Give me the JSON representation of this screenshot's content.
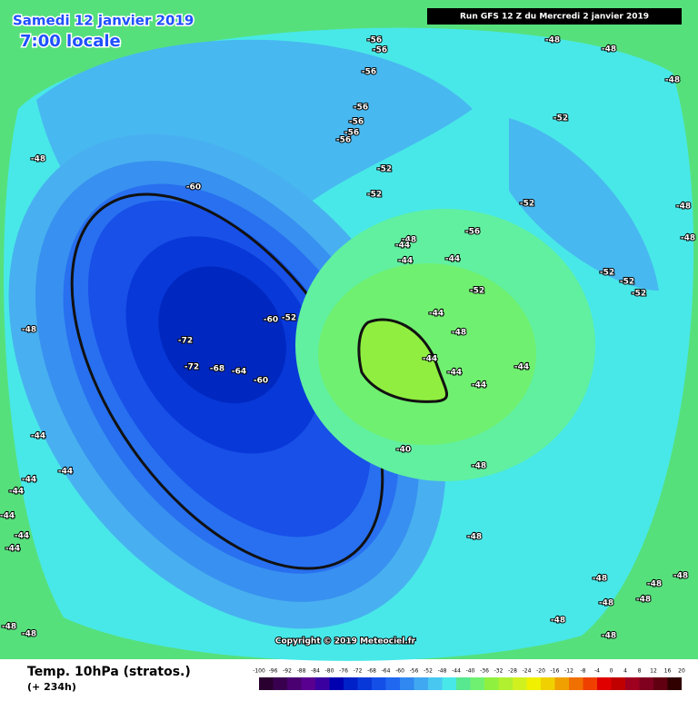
{
  "header": {
    "date": "Samedi 12 janvier 2019",
    "time": "7:00 locale",
    "run": "Run GFS 12 Z du Mercredi 2 janvier 2019"
  },
  "footer": {
    "parameter": "Temp. 10hPa (stratos.)",
    "lead": "(+ 234h)",
    "copyright": "Copyright © 2019 Meteociel.fr"
  },
  "colorbar": {
    "ticks": [
      -100,
      -96,
      -92,
      -88,
      -84,
      -80,
      -76,
      -72,
      -68,
      -64,
      -60,
      -56,
      -52,
      -48,
      -44,
      -40,
      -36,
      -32,
      -28,
      -24,
      -20,
      -16,
      -12,
      -8,
      -4,
      0,
      4,
      8,
      12,
      16,
      20
    ],
    "colors": [
      "#2a0030",
      "#3a0050",
      "#4a0070",
      "#5a0090",
      "#3a00a0",
      "#0000b0",
      "#0020c8",
      "#0838d8",
      "#1450e8",
      "#2068f0",
      "#3088f0",
      "#40a8f0",
      "#48c8f0",
      "#48e8e8",
      "#58e890",
      "#70f070",
      "#90f040",
      "#b0f030",
      "#d0f020",
      "#f0f000",
      "#f0d000",
      "#f0a000",
      "#f07000",
      "#f04000",
      "#e00000",
      "#c00000",
      "#a00020",
      "#800020",
      "#600010",
      "#300000"
    ]
  },
  "contour_labels": [
    "-56",
    "-56",
    "-56",
    "-56",
    "-56",
    "-56",
    "-56",
    "-48",
    "-48",
    "-48",
    "-48",
    "-48",
    "-48",
    "-48",
    "-52",
    "-52",
    "-52",
    "-52",
    "-52",
    "-52",
    "-52",
    "-52",
    "-48",
    "-48",
    "-60",
    "-60",
    "-72",
    "-72",
    "-68",
    "-64",
    "-60",
    "-56",
    "-52",
    "-44",
    "-44",
    "-44",
    "-44",
    "-44",
    "-40",
    "-48",
    "-44",
    "-44",
    "-44",
    "-44",
    "-44",
    "-44",
    "-44",
    "-44",
    "-44",
    "-44",
    "-48",
    "-48",
    "-48",
    "-48",
    "-48",
    "-48",
    "-48",
    "-48",
    "-48",
    "-48"
  ]
}
